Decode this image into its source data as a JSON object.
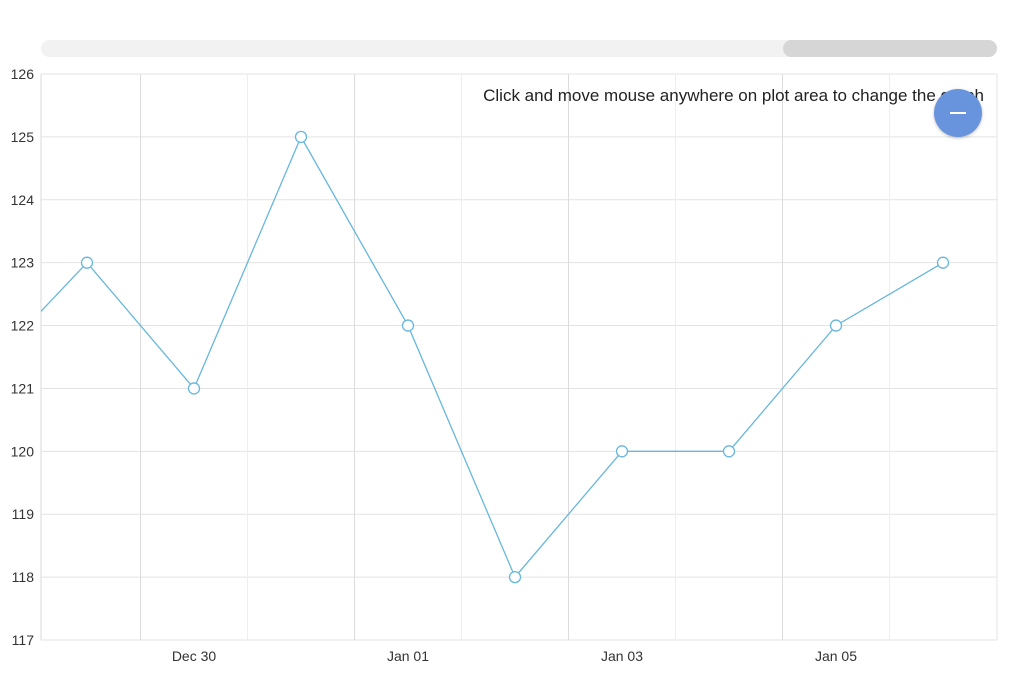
{
  "hint_text": "Click and move mouse anywhere on plot area to change the graph",
  "zoom_out_icon": "minus-icon",
  "colors": {
    "series": "#67b7dc",
    "accent": "#6794dc"
  },
  "chart_data": {
    "type": "line",
    "x": [
      "2018-12-28",
      "2018-12-29",
      "2018-12-30",
      "2018-12-31",
      "2019-01-01",
      "2019-01-02",
      "2019-01-03",
      "2019-01-04",
      "2019-01-05",
      "2019-01-06"
    ],
    "values": [
      121.2,
      123,
      121,
      125,
      122,
      118,
      120,
      120,
      122,
      123
    ],
    "xlabel": "",
    "ylabel": "",
    "ylim": [
      117,
      126
    ],
    "y_ticks": [
      117,
      118,
      119,
      120,
      121,
      122,
      123,
      124,
      125,
      126
    ],
    "x_tick_labels": [
      {
        "date": "2018-12-30",
        "label": "Dec 30"
      },
      {
        "date": "2019-01-01",
        "label": "Jan 01"
      },
      {
        "date": "2019-01-03",
        "label": "Jan 03"
      },
      {
        "date": "2019-01-05",
        "label": "Jan 05"
      }
    ],
    "grid": true,
    "markers": "hollow-circle"
  }
}
